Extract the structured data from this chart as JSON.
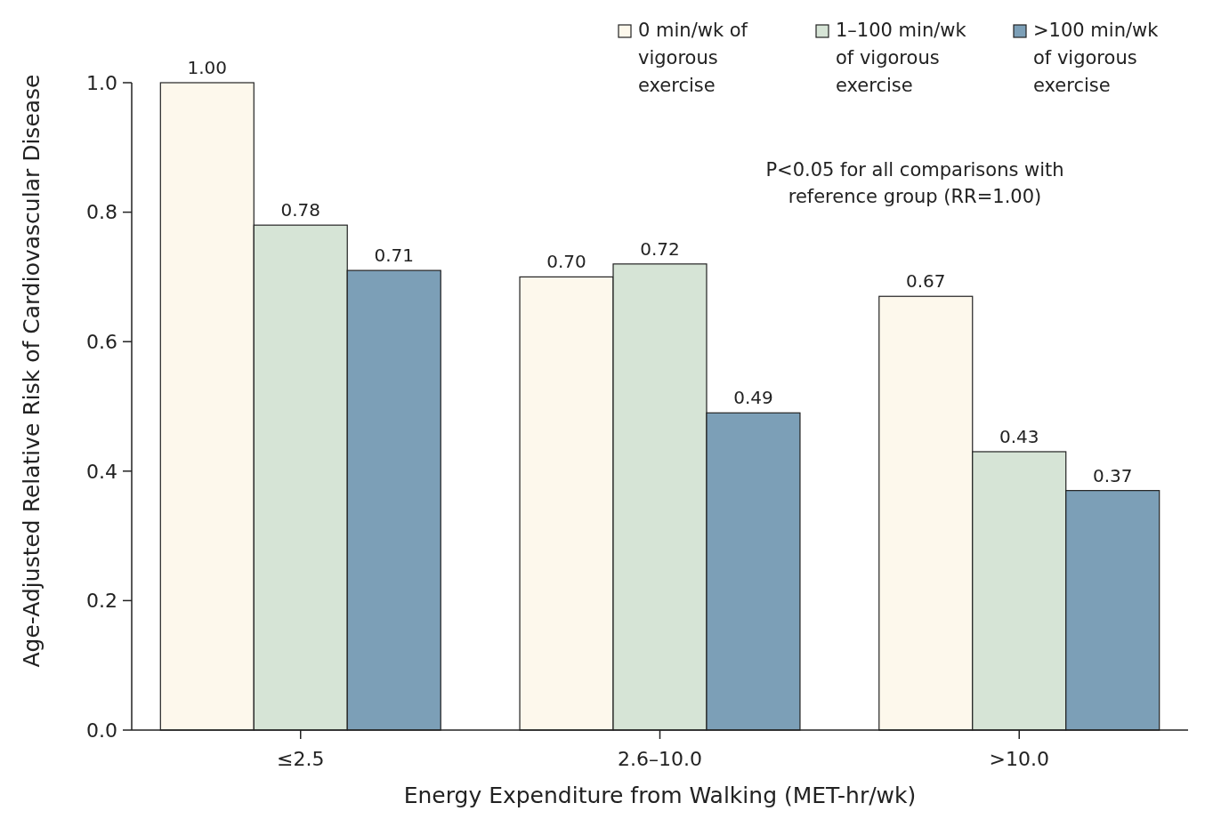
{
  "chart_data": {
    "type": "bar",
    "xlabel": "Energy Expenditure from Walking (MET-hr/wk)",
    "ylabel": "Age-Adjusted Relative Risk of Cardiovascular Disease",
    "categories": [
      "≤2.5",
      "2.6–10.0",
      ">10.0"
    ],
    "series": [
      {
        "name": "0 min/wk of vigorous exercise",
        "color": "#fdf8ec",
        "values": [
          1.0,
          0.7,
          0.67
        ],
        "value_labels": [
          "1.00",
          "0.70",
          "0.67"
        ]
      },
      {
        "name": "1–100 min/wk of vigorous exercise",
        "color": "#d6e4d6",
        "values": [
          0.78,
          0.72,
          0.43
        ],
        "value_labels": [
          "0.78",
          "0.72",
          "0.43"
        ]
      },
      {
        "name": ">100 min/wk of vigorous exercise",
        "color": "#7c9fb7",
        "values": [
          0.71,
          0.49,
          0.37
        ],
        "value_labels": [
          "0.71",
          "0.49",
          "0.37"
        ]
      }
    ],
    "ylim": [
      0,
      1.0
    ],
    "yticks": [
      {
        "value": 0,
        "label": "0.0"
      },
      0.2,
      0.4,
      0.6,
      0.8,
      {
        "value": 1.0,
        "label": "1.0"
      }
    ],
    "legend": "top right",
    "grid": false,
    "annotations": [
      "P<0.05 for all comparisons with reference group (RR=1.00)"
    ]
  }
}
